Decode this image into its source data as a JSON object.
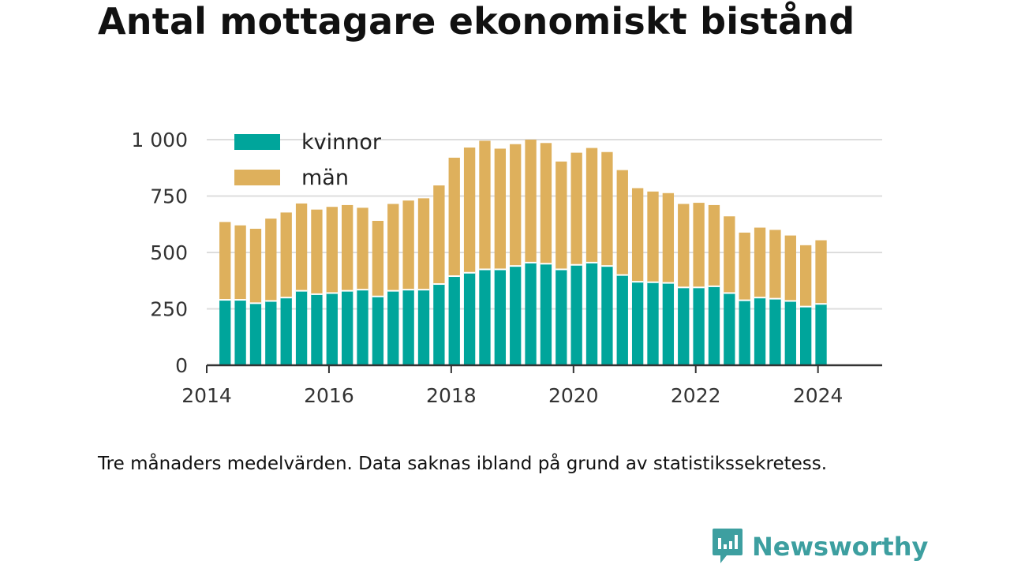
{
  "title": "Antal mottagare ekonomiskt bistånd",
  "note": "Tre månaders medelvärden. Data saknas ibland på grund av statistikssekretess.",
  "brand": {
    "name": "Newsworthy",
    "color": "#3d9fa0"
  },
  "chart_data": {
    "type": "bar",
    "stacked": true,
    "grid": true,
    "legend_position": "top-left",
    "x_ticks": [
      "2014",
      "2016",
      "2018",
      "2020",
      "2022",
      "2024"
    ],
    "y_ticks": [
      "0",
      "250",
      "500",
      "750",
      "1 000"
    ],
    "ylim": [
      0,
      1000
    ],
    "xlim": [
      2014.0,
      2025.05
    ],
    "x": [
      2014.3,
      2014.55,
      2014.8,
      2015.05,
      2015.3,
      2015.55,
      2015.8,
      2016.05,
      2016.3,
      2016.55,
      2016.8,
      2017.05,
      2017.3,
      2017.55,
      2017.8,
      2018.05,
      2018.3,
      2018.55,
      2018.8,
      2019.05,
      2019.3,
      2019.55,
      2019.8,
      2020.05,
      2020.3,
      2020.55,
      2020.8,
      2021.05,
      2021.3,
      2021.55,
      2021.8,
      2022.05,
      2022.3,
      2022.55,
      2022.8,
      2023.05,
      2023.3,
      2023.55,
      2023.8,
      2024.05
    ],
    "series": [
      {
        "name": "kvinnor",
        "color": "#00a59b",
        "values": [
          290,
          290,
          275,
          285,
          300,
          330,
          315,
          320,
          330,
          335,
          305,
          330,
          335,
          335,
          360,
          395,
          410,
          425,
          425,
          440,
          455,
          450,
          425,
          445,
          455,
          440,
          400,
          370,
          368,
          365,
          345,
          345,
          350,
          320,
          288,
          300,
          295,
          285,
          260,
          272
        ]
      },
      {
        "name": "män",
        "color": "#deb05c",
        "values": [
          345,
          330,
          330,
          365,
          377,
          387,
          375,
          382,
          380,
          363,
          335,
          385,
          395,
          405,
          437,
          525,
          555,
          570,
          535,
          540,
          545,
          535,
          478,
          497,
          508,
          505,
          465,
          415,
          402,
          398,
          370,
          375,
          360,
          340,
          300,
          310,
          305,
          290,
          272,
          282
        ]
      }
    ]
  }
}
